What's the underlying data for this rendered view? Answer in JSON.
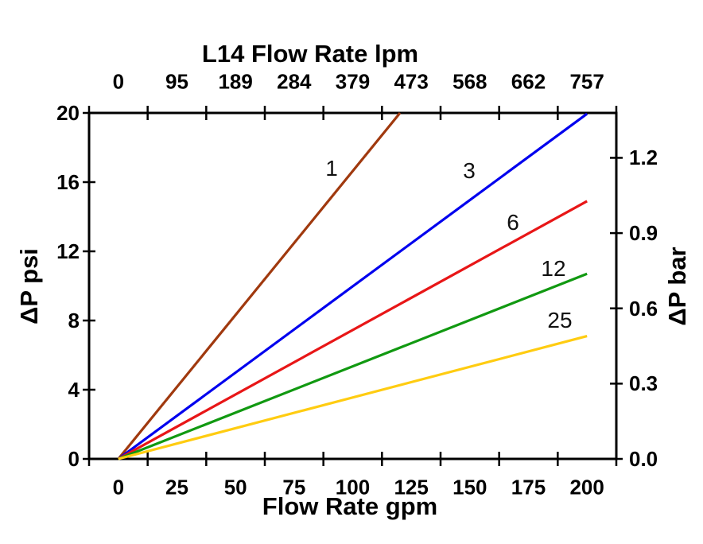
{
  "chart_data": {
    "type": "line",
    "description": "Pressure drop versus flow rate curves for L14 strainer/filter elements (mesh sizes 1, 3, 6, 12, 25), psi and bar vs gpm and lpm",
    "grid": false,
    "legend": "inline curve labels",
    "axes": {
      "top": {
        "title": "L14 Flow Rate lpm",
        "labels": [
          "0",
          "95",
          "189",
          "284",
          "379",
          "473",
          "568",
          "662",
          "757"
        ],
        "label_positions_gpm": [
          0,
          25,
          50,
          75,
          100,
          125,
          150,
          175,
          200
        ],
        "tick_positions_gpm": [
          -12.5,
          12.5,
          37.5,
          62.5,
          87.5,
          112.5,
          137.5,
          162.5,
          187.5,
          212.5
        ],
        "range_gpm": [
          -12.5,
          212.5
        ]
      },
      "bottom": {
        "title": "Flow Rate gpm",
        "labels": [
          "0",
          "25",
          "50",
          "75",
          "100",
          "125",
          "150",
          "175",
          "200"
        ],
        "label_positions_gpm": [
          0,
          25,
          50,
          75,
          100,
          125,
          150,
          175,
          200
        ],
        "tick_positions_gpm": [
          -12.5,
          12.5,
          37.5,
          62.5,
          87.5,
          112.5,
          137.5,
          162.5,
          187.5,
          212.5
        ],
        "range_gpm": [
          -12.5,
          212.5
        ]
      },
      "left": {
        "title": "ΔP psi",
        "labels": [
          "0",
          "4",
          "8",
          "12",
          "16",
          "20"
        ],
        "label_positions_psi": [
          0,
          4,
          8,
          12,
          16,
          20
        ],
        "range_psi": [
          0,
          20
        ]
      },
      "right": {
        "title": "ΔP bar",
        "labels": [
          "0.0",
          "0.3",
          "0.6",
          "0.9",
          "1.2"
        ],
        "label_positions_bar": [
          0.0,
          0.3,
          0.6,
          0.9,
          1.2
        ],
        "psi_per_bar": 14.5038
      }
    },
    "series": [
      {
        "name": "1",
        "color": "#A0390E",
        "points_gpm_psi": [
          [
            0,
            0
          ],
          [
            120.2,
            20
          ]
        ],
        "note": "clipped at 20 psi near 120 gpm"
      },
      {
        "name": "3",
        "color": "#0000EE",
        "points_gpm_psi": [
          [
            0,
            0
          ],
          [
            200,
            19.95
          ]
        ]
      },
      {
        "name": "6",
        "color": "#E81617",
        "points_gpm_psi": [
          [
            0,
            0
          ],
          [
            200,
            14.9
          ]
        ]
      },
      {
        "name": "12",
        "color": "#119911",
        "points_gpm_psi": [
          [
            0,
            0
          ],
          [
            200,
            10.7
          ]
        ]
      },
      {
        "name": "25",
        "color": "#FFCC11",
        "points_gpm_psi": [
          [
            0,
            0
          ],
          [
            200,
            7.1
          ]
        ]
      }
    ],
    "frame_color": "#000000",
    "background_color": "#ffffff"
  }
}
